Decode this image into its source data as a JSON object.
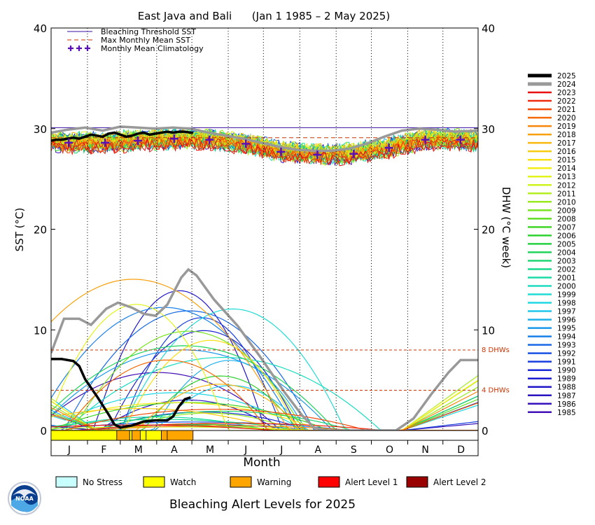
{
  "page": {
    "title": "East Java and Bali      (Jan 1 1985 – 2 May 2025)",
    "footer_title": "Bleaching Alert Levels for 2025",
    "logo_text": "NOAA"
  },
  "chart_data": {
    "type": "line",
    "title": "East Java and Bali      (Jan 1 1985 – 2 May 2025)",
    "xlabel": "Month",
    "ylabel_left": "SST (°C)",
    "ylabel_right": "DHW (°C week)",
    "ylim": [
      0,
      40
    ],
    "yticks": [
      0,
      10,
      20,
      30,
      40
    ],
    "months": [
      "J",
      "F",
      "M",
      "A",
      "M",
      "J",
      "J",
      "A",
      "S",
      "O",
      "N",
      "D"
    ],
    "bleaching_threshold_sst": 30.1,
    "max_monthly_mean_sst": 29.1,
    "dhw_thresholds": [
      {
        "value": 8,
        "label": "8 DHWs"
      },
      {
        "value": 4,
        "label": "4 DHWs"
      }
    ],
    "legend_top": [
      {
        "label": "Bleaching Threshold SST",
        "style": "solid",
        "color": "#3a0fa0"
      },
      {
        "label": "Max Monthly Mean SST",
        "style": "dashed",
        "color": "#cc3300"
      },
      {
        "label": "Monthly Mean Climatology",
        "style": "plus",
        "color": "#5a10b8"
      }
    ],
    "monthly_mean_climatology": [
      28.6,
      28.6,
      28.8,
      29.0,
      28.9,
      28.5,
      27.7,
      27.4,
      27.5,
      28.1,
      28.9,
      28.9
    ],
    "years": [
      "2025",
      "2024",
      "2023",
      "2022",
      "2021",
      "2020",
      "2019",
      "2018",
      "2017",
      "2016",
      "2015",
      "2014",
      "2013",
      "2012",
      "2011",
      "2010",
      "2009",
      "2008",
      "2007",
      "2006",
      "2005",
      "2004",
      "2003",
      "2002",
      "2001",
      "2000",
      "1999",
      "1998",
      "1997",
      "1996",
      "1995",
      "1994",
      "1993",
      "1992",
      "1991",
      "1990",
      "1989",
      "1988",
      "1987",
      "1986",
      "1985"
    ],
    "year_colors": [
      "#000000",
      "#999999",
      "#e8110f",
      "#f02a0c",
      "#f24a0a",
      "#f66a06",
      "#f8860a",
      "#f8a00c",
      "#f8b80e",
      "#f8cc10",
      "#f8e014",
      "#f4ee16",
      "#e2f41a",
      "#cef420",
      "#b4ef22",
      "#98ea22",
      "#7ae420",
      "#5edf22",
      "#40d626",
      "#2ed22e",
      "#26d242",
      "#20d45a",
      "#1ed672",
      "#1ad88c",
      "#1adaa6",
      "#1cdcc0",
      "#20dcd4",
      "#20d8e4",
      "#1ec6ec",
      "#1cb0ec",
      "#1a98ec",
      "#1880ea",
      "#1868e6",
      "#1852e2",
      "#183ede",
      "#182ad8",
      "#1a1ed0",
      "#2018c8",
      "#2a14c2",
      "#3612bc",
      "#4210b6"
    ],
    "sst_2025": [
      [
        1,
        28.8
      ],
      [
        5,
        28.9
      ],
      [
        10,
        28.9
      ],
      [
        15,
        29.0
      ],
      [
        20,
        29.1
      ],
      [
        25,
        29.0
      ],
      [
        30,
        29.2
      ],
      [
        35,
        29.4
      ],
      [
        40,
        29.3
      ],
      [
        45,
        29.2
      ],
      [
        50,
        29.5
      ],
      [
        55,
        29.6
      ],
      [
        60,
        29.4
      ],
      [
        65,
        29.2
      ],
      [
        70,
        29.3
      ],
      [
        75,
        29.5
      ],
      [
        80,
        29.6
      ],
      [
        85,
        29.4
      ],
      [
        90,
        29.5
      ],
      [
        95,
        29.6
      ],
      [
        100,
        29.7
      ],
      [
        105,
        29.6
      ],
      [
        110,
        29.7
      ],
      [
        115,
        29.7
      ],
      [
        120,
        29.6
      ],
      [
        122,
        29.6
      ]
    ],
    "sst_2024": [
      [
        1,
        29.6
      ],
      [
        15,
        29.9
      ],
      [
        30,
        30.1
      ],
      [
        45,
        29.8
      ],
      [
        60,
        30.2
      ],
      [
        75,
        30.1
      ],
      [
        90,
        30.0
      ],
      [
        105,
        30.1
      ],
      [
        120,
        30.0
      ],
      [
        135,
        29.6
      ],
      [
        150,
        29.3
      ],
      [
        165,
        29.0
      ],
      [
        180,
        28.6
      ],
      [
        195,
        28.2
      ],
      [
        210,
        27.9
      ],
      [
        225,
        27.8
      ],
      [
        240,
        27.8
      ],
      [
        255,
        28.0
      ],
      [
        270,
        28.5
      ],
      [
        285,
        29.2
      ],
      [
        300,
        29.8
      ],
      [
        315,
        30.0
      ],
      [
        330,
        29.9
      ],
      [
        345,
        29.7
      ],
      [
        365,
        29.8
      ]
    ],
    "dhw_2025": [
      [
        1,
        7.1
      ],
      [
        10,
        7.1
      ],
      [
        20,
        6.9
      ],
      [
        25,
        6.4
      ],
      [
        30,
        5.1
      ],
      [
        40,
        3.4
      ],
      [
        50,
        1.6
      ],
      [
        55,
        0.6
      ],
      [
        60,
        0.3
      ],
      [
        70,
        0.5
      ],
      [
        80,
        0.9
      ],
      [
        90,
        1.0
      ],
      [
        100,
        1.0
      ],
      [
        105,
        1.4
      ],
      [
        110,
        2.4
      ],
      [
        115,
        3.1
      ],
      [
        120,
        3.3
      ]
    ],
    "dhw_2024": [
      [
        1,
        7.7
      ],
      [
        12,
        11.1
      ],
      [
        25,
        11.1
      ],
      [
        35,
        10.5
      ],
      [
        48,
        12.1
      ],
      [
        58,
        12.7
      ],
      [
        70,
        12.2
      ],
      [
        80,
        11.6
      ],
      [
        90,
        11.4
      ],
      [
        100,
        12.5
      ],
      [
        112,
        15.2
      ],
      [
        118,
        16.0
      ],
      [
        125,
        15.4
      ],
      [
        140,
        13.0
      ],
      [
        160,
        10.4
      ],
      [
        180,
        7.2
      ],
      [
        200,
        3.8
      ],
      [
        215,
        1.5
      ],
      [
        225,
        0.3
      ],
      [
        235,
        0.0
      ],
      [
        295,
        0.0
      ],
      [
        310,
        1.2
      ],
      [
        325,
        3.6
      ],
      [
        340,
        5.8
      ],
      [
        350,
        7.0
      ],
      [
        365,
        7.0
      ]
    ],
    "alert_legend": [
      {
        "label": "No Stress",
        "color": "#c8ffff"
      },
      {
        "label": "Watch",
        "color": "#ffff00"
      },
      {
        "label": "Warning",
        "color": "#ffa500"
      },
      {
        "label": "Alert Level 1",
        "color": "#ff0000"
      },
      {
        "label": "Alert Level 2",
        "color": "#990000"
      }
    ],
    "alert_2025": [
      {
        "start": 1,
        "end": 57,
        "level": "Watch"
      },
      {
        "start": 57,
        "end": 68,
        "level": "Warning"
      },
      {
        "start": 68,
        "end": 70,
        "level": "Watch"
      },
      {
        "start": 70,
        "end": 77,
        "level": "Warning"
      },
      {
        "start": 77,
        "end": 82,
        "level": "Watch"
      },
      {
        "start": 82,
        "end": 95,
        "level": "Watch"
      },
      {
        "start": 95,
        "end": 100,
        "level": "Warning"
      },
      {
        "start": 100,
        "end": 122,
        "level": "Warning"
      }
    ]
  }
}
